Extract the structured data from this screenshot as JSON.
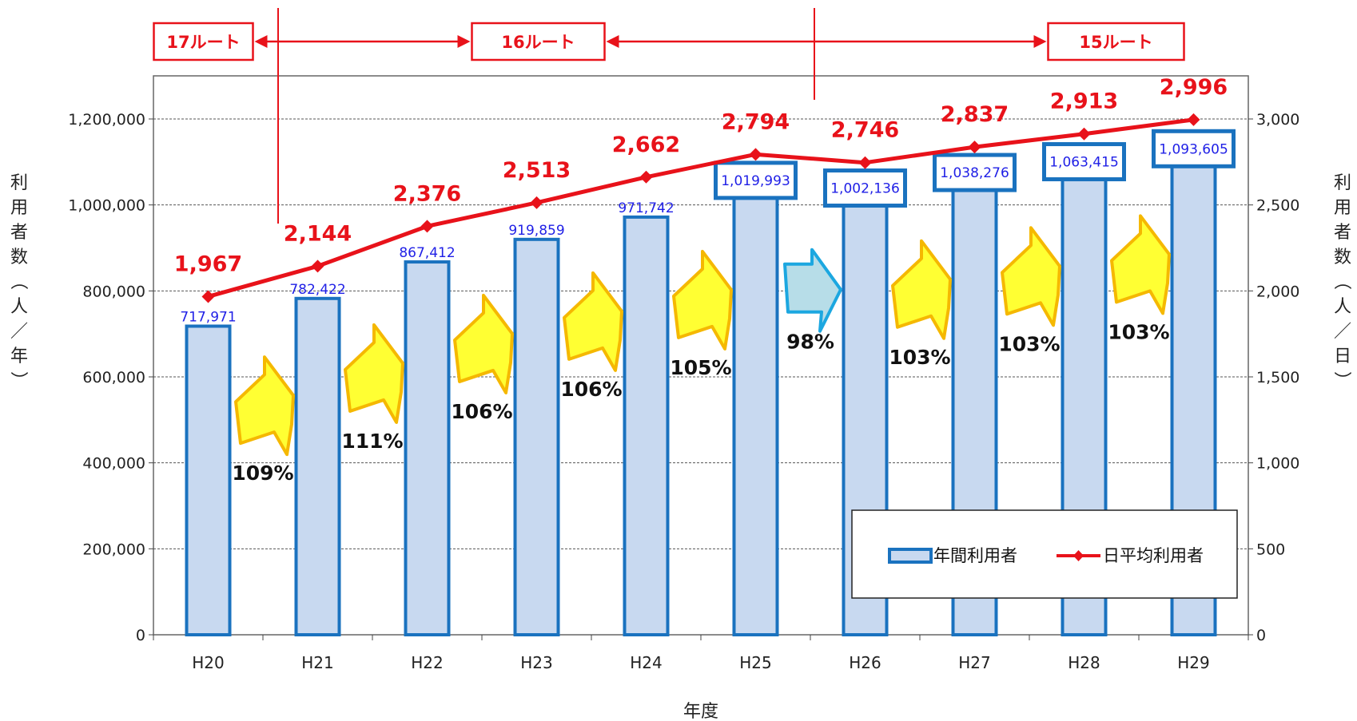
{
  "chart_data": {
    "type": "bar",
    "categories": [
      "H20",
      "H21",
      "H22",
      "H23",
      "H24",
      "H25",
      "H26",
      "H27",
      "H28",
      "H29"
    ],
    "series": [
      {
        "name": "年間利用者",
        "type": "bar",
        "axis": "left",
        "values": [
          717971,
          782422,
          867412,
          919859,
          971742,
          1019993,
          1002136,
          1038276,
          1063415,
          1093605
        ],
        "labels": [
          "717,971",
          "782,422",
          "867,412",
          "919,859",
          "971,742",
          "1,019,993",
          "1,002,136",
          "1,038,276",
          "1,063,415",
          "1,093,605"
        ],
        "boxed_labels": [
          false,
          false,
          false,
          false,
          false,
          true,
          true,
          true,
          true,
          true
        ],
        "color": "#c8d9f0",
        "border_color": "#1a72bf"
      },
      {
        "name": "日平均利用者",
        "type": "line",
        "axis": "right",
        "values": [
          1967,
          2144,
          2376,
          2513,
          2662,
          2794,
          2746,
          2837,
          2913,
          2996
        ],
        "labels": [
          "1,967",
          "2,144",
          "2,376",
          "2,513",
          "2,662",
          "2,794",
          "2,746",
          "2,837",
          "2,913",
          "2,996"
        ],
        "color": "#e8121a"
      }
    ],
    "growth": [
      {
        "label": "109%",
        "direction": "up"
      },
      {
        "label": "111%",
        "direction": "up"
      },
      {
        "label": "106%",
        "direction": "up"
      },
      {
        "label": "106%",
        "direction": "up"
      },
      {
        "label": "105%",
        "direction": "up"
      },
      {
        "label": "98%",
        "direction": "down"
      },
      {
        "label": "103%",
        "direction": "up"
      },
      {
        "label": "103%",
        "direction": "up"
      },
      {
        "label": "103%",
        "direction": "up"
      }
    ],
    "routes": [
      {
        "label": "17ルート",
        "from": "H20",
        "to": "H21"
      },
      {
        "label": "16ルート",
        "from": "H21",
        "to": "H25"
      },
      {
        "label": "15ルート",
        "from": "H25",
        "to": "H29"
      }
    ],
    "xlabel": "年度",
    "ylabel_left": "利用者数（人／年）",
    "ylabel_right": "利用者数（人／日）",
    "ylim_left": [
      0,
      1200000
    ],
    "ylim_right": [
      0,
      3000
    ],
    "yticks_left": [
      "0",
      "200,000",
      "400,000",
      "600,000",
      "800,000",
      "1,000,000",
      "1,200,000"
    ],
    "yticks_right": [
      "0",
      "500",
      "1,000",
      "1,500",
      "2,000",
      "2,500",
      "3,000"
    ],
    "grid": true,
    "legend_position": "bottom-right",
    "colors": {
      "bar_fill": "#c8d9f0",
      "bar_border": "#1a72bf",
      "line": "#e8121a",
      "up_arrow_fill": "#ffff33",
      "up_arrow_border": "#f5b800",
      "down_arrow_fill": "#b7dde8",
      "down_arrow_border": "#1ca7e0"
    }
  }
}
